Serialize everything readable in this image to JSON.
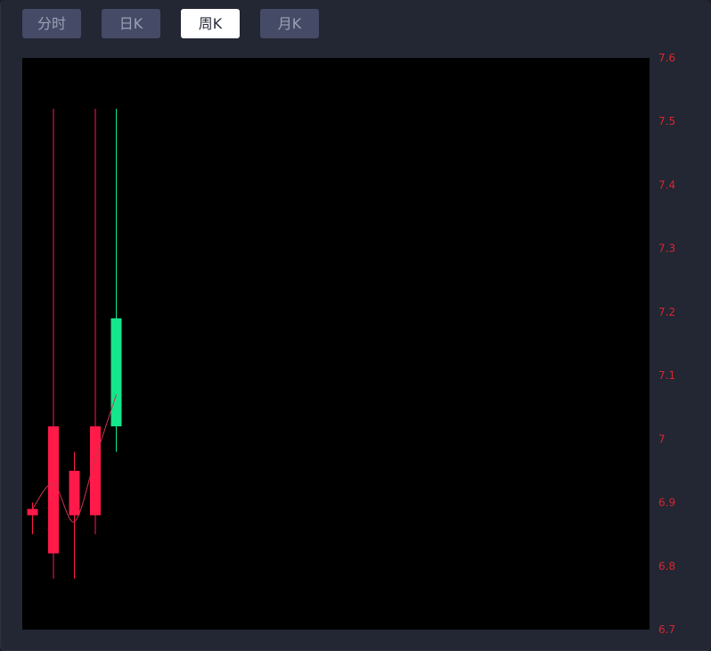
{
  "tabs": [
    {
      "label": "分时",
      "active": false
    },
    {
      "label": "日K",
      "active": false
    },
    {
      "label": "周K",
      "active": true
    },
    {
      "label": "月K",
      "active": false
    }
  ],
  "colors": {
    "up": "#ff1a4a",
    "down": "#14e68c",
    "axis_label": "#d8262f",
    "plot_bg": "#000000",
    "ma_line": "#c9344f"
  },
  "chart_data": {
    "type": "candlestick",
    "title": "",
    "ylim": [
      6.7,
      7.6
    ],
    "yticks": [
      {
        "value": 7.6,
        "label": "7.6"
      },
      {
        "value": 7.5,
        "label": "7.5"
      },
      {
        "value": 7.4,
        "label": "7.4"
      },
      {
        "value": 7.3,
        "label": "7.3"
      },
      {
        "value": 7.2,
        "label": "7.2"
      },
      {
        "value": 7.1,
        "label": "7.1"
      },
      {
        "value": 7.0,
        "label": "7"
      },
      {
        "value": 6.9,
        "label": "6.9"
      },
      {
        "value": 6.8,
        "label": "6.8"
      },
      {
        "value": 6.7,
        "label": "6.7"
      }
    ],
    "candles": [
      {
        "open": 6.88,
        "close": 6.89,
        "high": 6.9,
        "low": 6.85,
        "trend": "up"
      },
      {
        "open": 6.82,
        "close": 7.02,
        "high": 7.52,
        "low": 6.78,
        "trend": "up"
      },
      {
        "open": 6.88,
        "close": 6.95,
        "high": 6.98,
        "low": 6.78,
        "trend": "up"
      },
      {
        "open": 6.88,
        "close": 7.02,
        "high": 7.52,
        "low": 6.85,
        "trend": "up"
      },
      {
        "open": 7.19,
        "close": 7.02,
        "high": 7.52,
        "low": 6.98,
        "trend": "down"
      }
    ],
    "ma_line": [
      6.89,
      6.93,
      6.87,
      6.97,
      7.07
    ]
  }
}
